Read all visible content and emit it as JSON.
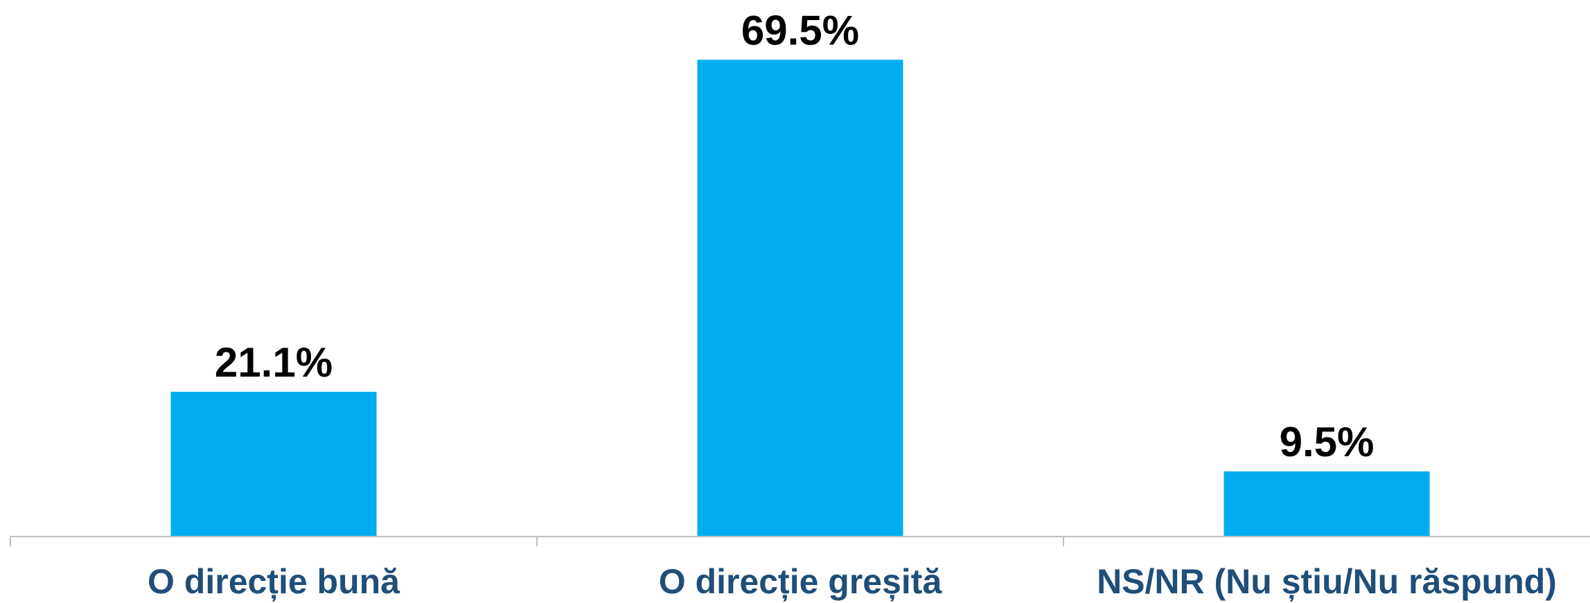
{
  "chart_data": {
    "type": "bar",
    "categories": [
      "O direcție bună",
      "O direcție greșită",
      "NS/NR (Nu știu/Nu răspund)"
    ],
    "values": [
      21.1,
      69.5,
      9.5
    ],
    "value_labels": [
      "21.1%",
      "69.5%",
      "9.5%"
    ],
    "title": "",
    "xlabel": "",
    "ylabel": "",
    "ylim": [
      0,
      70
    ],
    "grid": false,
    "legend": "none",
    "colors": {
      "bar": "#00AEEF",
      "category_text": "#1F4E79",
      "value_text": "#000000",
      "axis": "#BFBFBF"
    }
  }
}
